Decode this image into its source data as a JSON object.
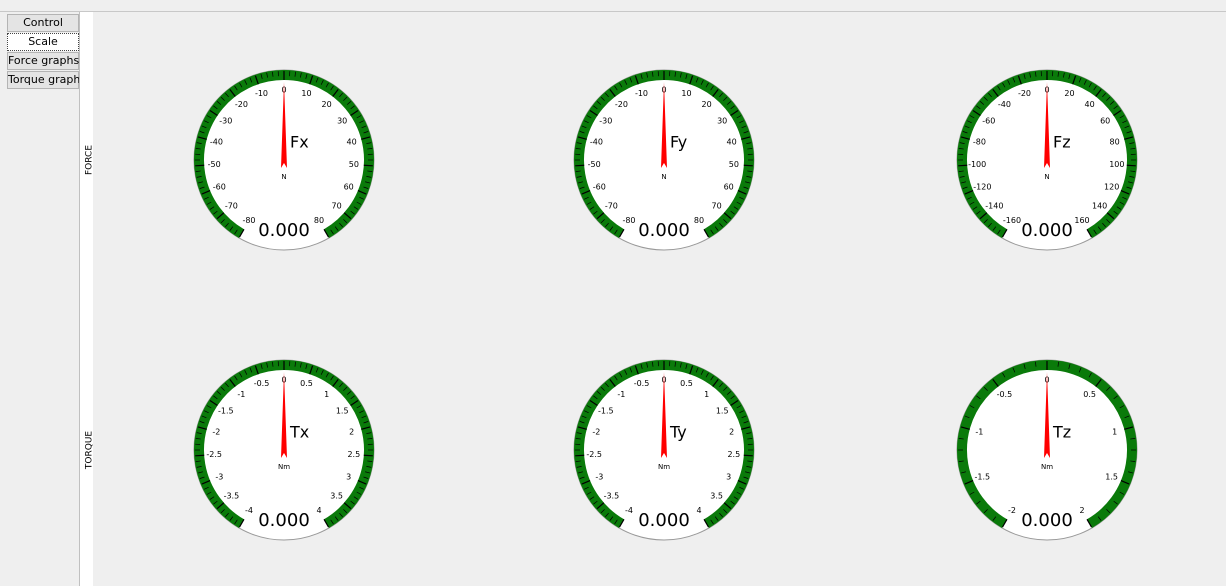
{
  "tabs": [
    "Control",
    "Scale",
    "Force graphs",
    "Torque graphs"
  ],
  "rows": [
    "FORCE",
    "TORQUE"
  ],
  "gauges": [
    {
      "label": "Fx",
      "unit": "N",
      "value": 0,
      "value_label": "0.000",
      "ticks": [
        -80,
        -70,
        -60,
        -50,
        -40,
        -30,
        -20,
        -10,
        0,
        10,
        20,
        30,
        40,
        50,
        60,
        70,
        80
      ]
    },
    {
      "label": "Fy",
      "unit": "N",
      "value": 0,
      "value_label": "0.000",
      "ticks": [
        -80,
        -70,
        -60,
        -50,
        -40,
        -30,
        -20,
        -10,
        0,
        10,
        20,
        30,
        40,
        50,
        60,
        70,
        80
      ]
    },
    {
      "label": "Fz",
      "unit": "N",
      "value": 0,
      "value_label": "0.000",
      "ticks": [
        -160,
        -140,
        -120,
        -100,
        -80,
        -60,
        -40,
        -20,
        0,
        20,
        40,
        60,
        80,
        100,
        120,
        140,
        160
      ]
    },
    {
      "label": "Tx",
      "unit": "Nm",
      "value": 0,
      "value_label": "0.000",
      "ticks": [
        -4,
        -3.5,
        -3,
        -2.5,
        -2,
        -1.5,
        -1,
        -0.5,
        0,
        0.5,
        1,
        1.5,
        2,
        2.5,
        3,
        3.5,
        4
      ]
    },
    {
      "label": "Ty",
      "unit": "Nm",
      "value": 0,
      "value_label": "0.000",
      "ticks": [
        -4,
        -3.5,
        -3,
        -2.5,
        -2,
        -1.5,
        -1,
        -0.5,
        0,
        0.5,
        1,
        1.5,
        2,
        2.5,
        3,
        3.5,
        4
      ]
    },
    {
      "label": "Tz",
      "unit": "Nm",
      "value": 0,
      "value_label": "0.000",
      "ticks": [
        -2,
        -1.5,
        -1,
        -0.5,
        0,
        0.5,
        1,
        1.5,
        2
      ]
    }
  ]
}
